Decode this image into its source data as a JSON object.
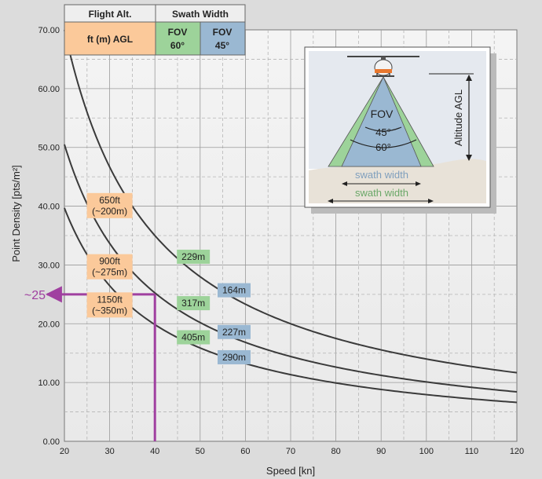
{
  "chart_data": {
    "type": "line",
    "xlabel": "Speed [kn]",
    "ylabel": "Point Density [pts/m²]",
    "xlim": [
      20,
      120
    ],
    "ylim": [
      0,
      70
    ],
    "xticks": [
      20,
      30,
      40,
      50,
      60,
      70,
      80,
      90,
      100,
      110,
      120
    ],
    "xtick_labels": [
      "20",
      "30",
      "40",
      "50",
      "60",
      "70",
      "80",
      "90",
      "100",
      "110",
      "120"
    ],
    "yticks": [
      0,
      10,
      20,
      30,
      40,
      50,
      60,
      70
    ],
    "ytick_labels": [
      "0.00",
      "10.00",
      "20.00",
      "30.00",
      "40.00",
      "50.00",
      "60.00",
      "70.00"
    ],
    "grid": true,
    "series": [
      {
        "k": 1400,
        "altitude_label": "650ft\n(~200m)",
        "altitude_value": [
          30,
          40.1
        ],
        "swath60_label": "229m",
        "swath60_value": [
          48.5,
          31.4
        ],
        "swath45_label": "164m",
        "swath45_value": [
          57.5,
          25.7
        ]
      },
      {
        "k": 1010,
        "altitude_label": "900ft\n(~275m)",
        "altitude_value": [
          30,
          29.7
        ],
        "swath60_label": "317m",
        "swath60_value": [
          48.5,
          23.5
        ],
        "swath45_label": "227m",
        "swath45_value": [
          57.5,
          18.6
        ]
      },
      {
        "k": 794,
        "altitude_label": "1150ft\n(~350m)",
        "altitude_value": [
          30,
          23.2
        ],
        "swath60_label": "405m",
        "swath60_value": [
          48.5,
          17.7
        ],
        "swath45_label": "290m",
        "swath45_value": [
          57.5,
          14.3
        ]
      }
    ],
    "marker": {
      "x": 40,
      "y": 25,
      "label": "~25",
      "color": "#a040a0"
    }
  },
  "header_table": {
    "flight_alt_header": "Flight Alt.",
    "flight_alt_unit": "ft (m) AGL",
    "swath_header": "Swath Width",
    "fov60_line1": "FOV",
    "fov60_line2": "60°",
    "fov45_line1": "FOV",
    "fov45_line2": "45°"
  },
  "inset": {
    "fov_label": "FOV",
    "angle45": "45°",
    "angle60": "60°",
    "altitude_label": "Altitude AGL",
    "swath_label_45": "swath width",
    "swath_label_60": "swath width"
  },
  "colors": {
    "altitude_label_bg": "#fbc99a",
    "fov60_bg": "#9dd39a",
    "fov45_bg": "#9ab8d2",
    "curve": "#3a3a3a",
    "marker": "#a040a0"
  }
}
